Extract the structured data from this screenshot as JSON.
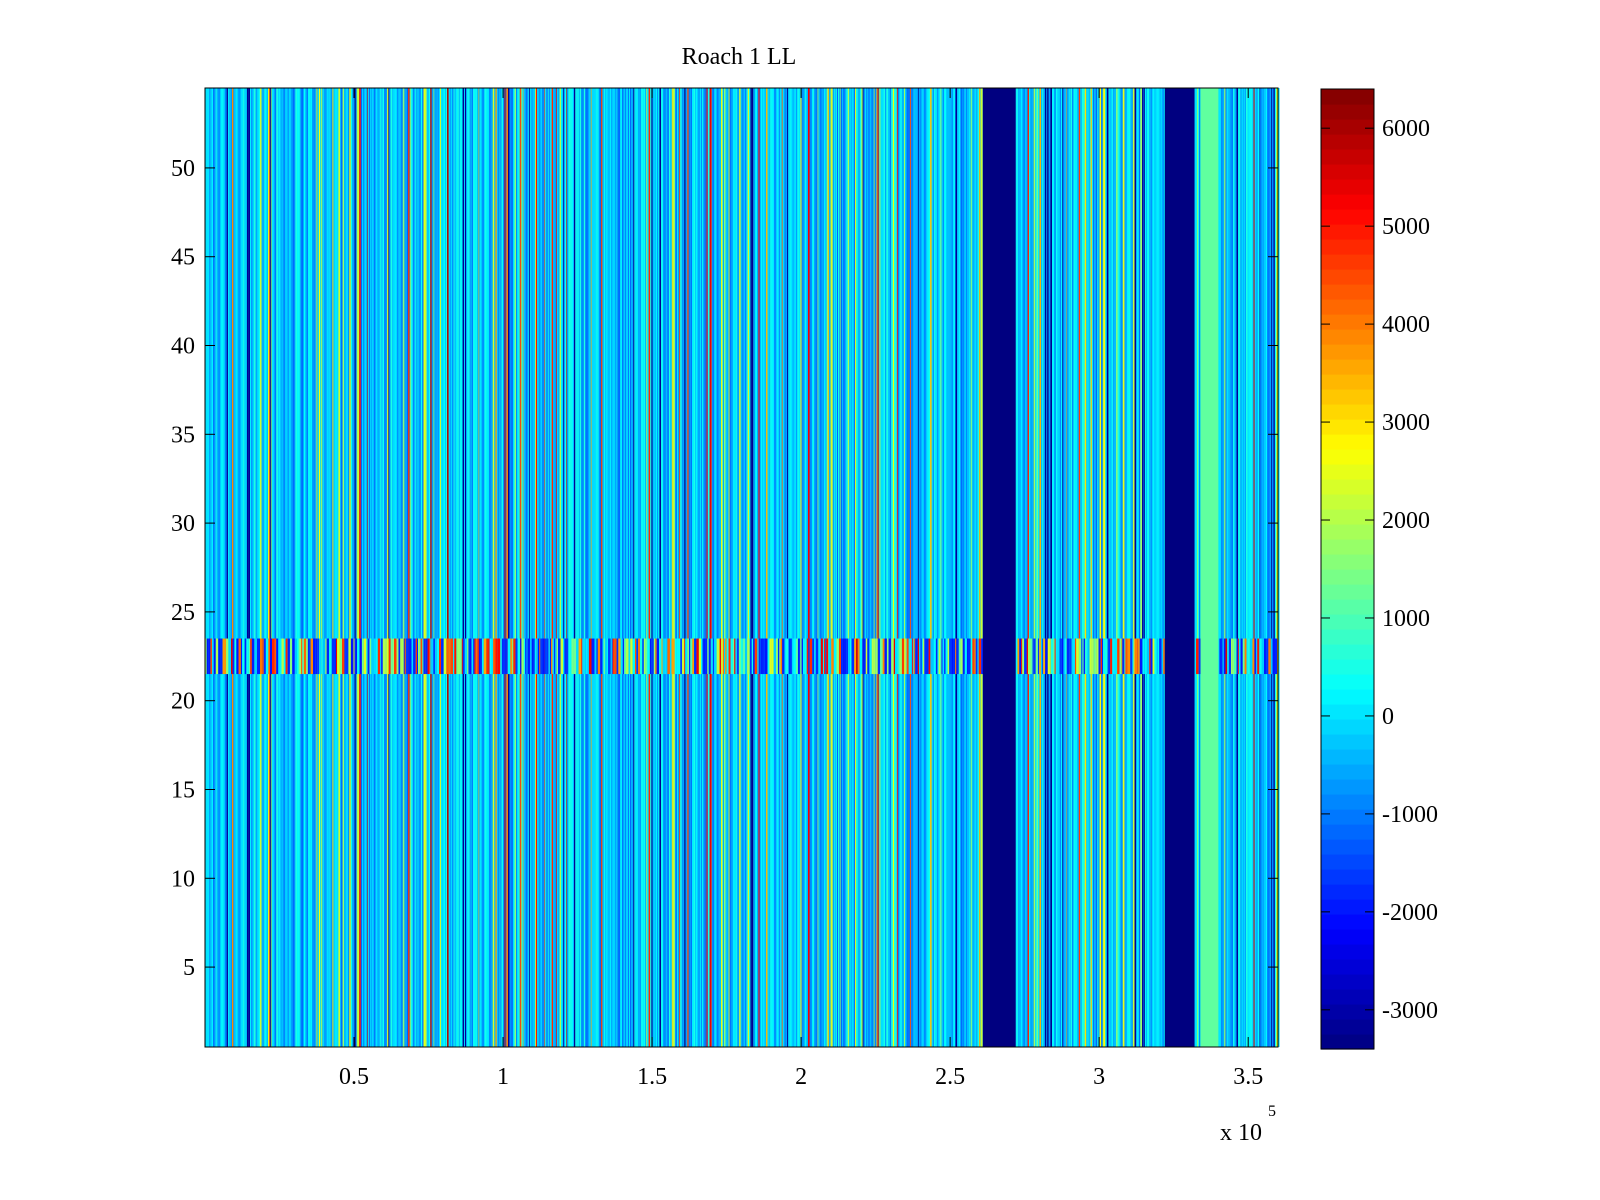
{
  "chart_data": {
    "type": "heatmap",
    "title": "Roach 1 LL",
    "xlabel": "",
    "ylabel": "",
    "x_exponent_label": "x 10",
    "x_exponent_power": "5",
    "xlim": [
      0,
      3.6
    ],
    "ylim": [
      0.5,
      54.5
    ],
    "x_ticks": [
      0.5,
      1,
      1.5,
      2,
      2.5,
      3,
      3.5
    ],
    "x_tick_labels": [
      "0.5",
      "1",
      "1.5",
      "2",
      "2.5",
      "3",
      "3.5"
    ],
    "y_ticks": [
      5,
      10,
      15,
      20,
      25,
      30,
      35,
      40,
      45,
      50
    ],
    "y_tick_labels": [
      "5",
      "10",
      "15",
      "20",
      "25",
      "30",
      "35",
      "40",
      "45",
      "50"
    ],
    "rows": 54,
    "baseline_value": 0,
    "colormap": "jet",
    "colorbar": {
      "range": [
        -3400,
        6400
      ],
      "ticks": [
        -3000,
        -2000,
        -1000,
        0,
        1000,
        2000,
        3000,
        4000,
        5000,
        6000
      ],
      "tick_labels": [
        "-3000",
        "-2000",
        "-1000",
        "0",
        "1000",
        "2000",
        "3000",
        "4000",
        "5000",
        "6000"
      ]
    },
    "features": [
      {
        "kind": "column-band",
        "x_from": 2.61,
        "x_to": 2.72,
        "value": -3400
      },
      {
        "kind": "column-band",
        "x_from": 3.22,
        "x_to": 3.32,
        "value": -3400
      },
      {
        "kind": "column-band",
        "x_from": 3.34,
        "x_to": 3.4,
        "value": 1200
      },
      {
        "kind": "row-band",
        "y_from": 21.5,
        "y_to": 23.5,
        "value_range": [
          -1800,
          5500
        ]
      }
    ],
    "grid": false,
    "legend": "colorbar-right"
  }
}
